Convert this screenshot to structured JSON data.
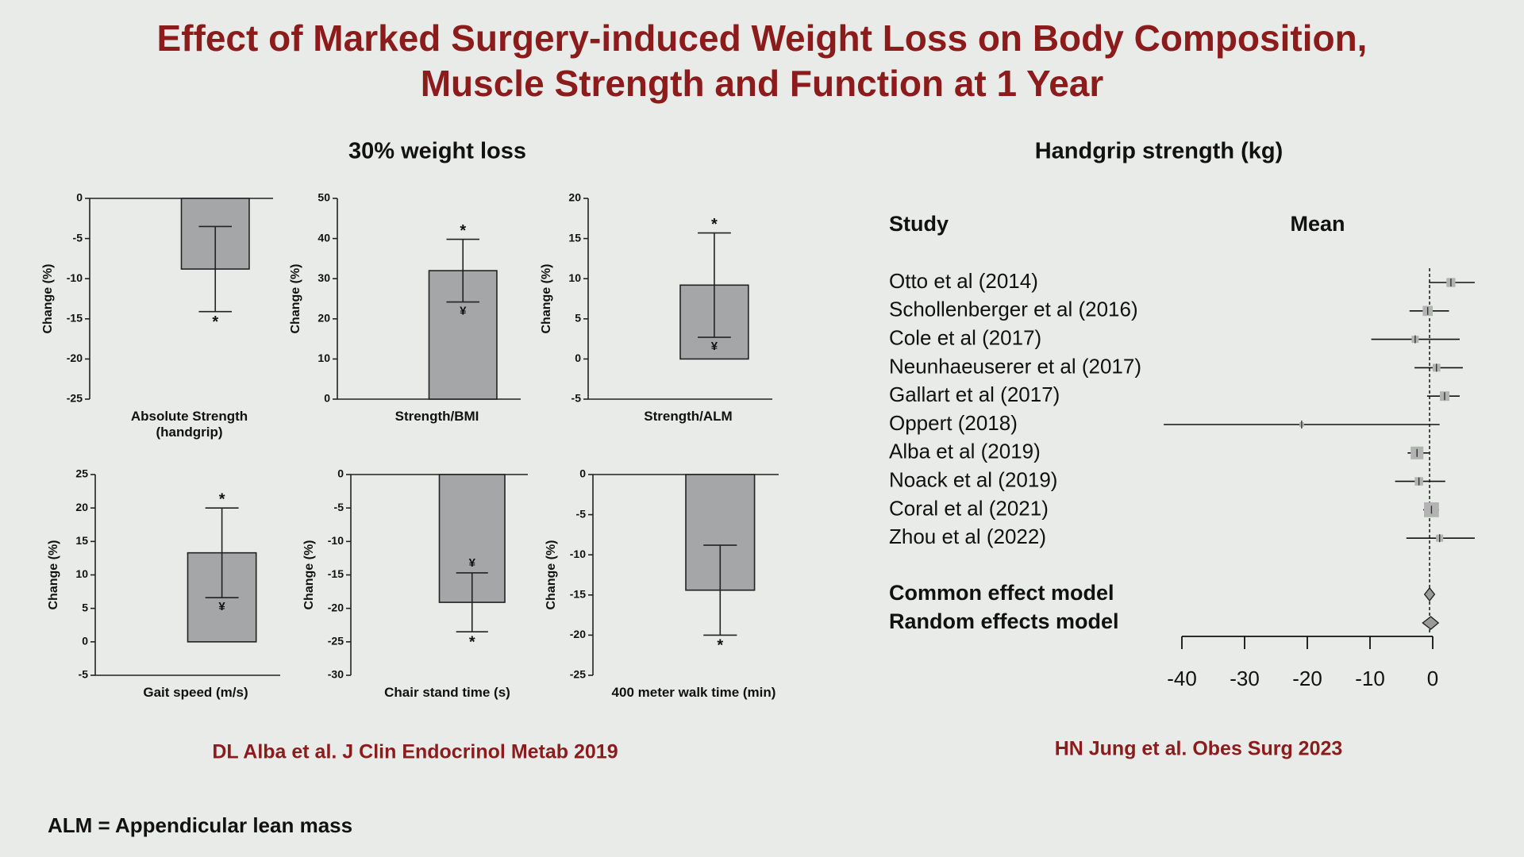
{
  "title": "Effect of Marked Surgery-induced Weight Loss on Body Composition, Muscle Strength and Function at 1 Year",
  "left_heading": "30% weight loss",
  "right_heading": "Handgrip strength (kg)",
  "left_citation": "DL Alba et al. J Clin Endocrinol Metab 2019",
  "right_citation": "HN Jung et al. Obes Surg 2023",
  "footnote": "ALM = Appendicular lean mass",
  "chart_data": [
    {
      "type": "bar",
      "y_label": "Change (%)",
      "categories": [
        "Absolute Strength (handgrip)"
      ],
      "values": [
        -8.8
      ],
      "errors": [
        5.3
      ],
      "outer_mark": "*",
      "ylim": [
        -25,
        0
      ],
      "yticks": [
        0,
        -5,
        -10,
        -15,
        -20,
        -25
      ],
      "color": "#a4a6a7"
    },
    {
      "type": "bar",
      "y_label": "Change (%)",
      "categories": [
        "Strength/BMI"
      ],
      "values": [
        32
      ],
      "errors": [
        7.8
      ],
      "outer_mark": "*",
      "inner_mark": "¥",
      "ylim": [
        0,
        50
      ],
      "yticks": [
        0,
        10,
        20,
        30,
        40,
        50
      ],
      "color": "#a4a6a7"
    },
    {
      "type": "bar",
      "y_label": "Change (%)",
      "categories": [
        "Strength/ALM"
      ],
      "values": [
        9.2
      ],
      "errors": [
        6.5
      ],
      "outer_mark": "*",
      "inner_mark": "¥",
      "ylim": [
        -5,
        20
      ],
      "yticks": [
        -5,
        0,
        5,
        10,
        15,
        20
      ],
      "color": "#a4a6a7"
    },
    {
      "type": "bar",
      "y_label": "Change (%)",
      "categories": [
        "Gait speed  (m/s)"
      ],
      "values": [
        13.3
      ],
      "errors": [
        6.7
      ],
      "outer_mark": "*",
      "inner_mark": "¥",
      "ylim": [
        -5,
        25
      ],
      "yticks": [
        -5,
        0,
        5,
        10,
        15,
        20,
        25
      ],
      "color": "#a4a6a7"
    },
    {
      "type": "bar",
      "y_label": "Change (%)",
      "categories": [
        "Chair stand time (s)"
      ],
      "values": [
        -19.1
      ],
      "errors": [
        4.4
      ],
      "outer_mark": "*",
      "inner_mark": "¥",
      "ylim": [
        -30,
        0
      ],
      "yticks": [
        0,
        -5,
        -10,
        -15,
        -20,
        -25,
        -30
      ],
      "color": "#a4a6a7"
    },
    {
      "type": "bar",
      "y_label": "Change (%)",
      "categories": [
        "400 meter walk time (min)"
      ],
      "values": [
        -14.4
      ],
      "errors": [
        5.6
      ],
      "outer_mark": "*",
      "ylim": [
        -25,
        0
      ],
      "yticks": [
        0,
        -5,
        -10,
        -15,
        -20,
        -25
      ],
      "color": "#a4a6a7"
    },
    {
      "type": "forest",
      "column_headers": [
        "Study",
        "Mean"
      ],
      "studies": [
        "Otto et al (2014)",
        "Schollenberger et al (2016)",
        "Cole et al (2017)",
        "Neunhaeuserer et al (2017)",
        "Gallart et al (2017)",
        "Oppert (2018)",
        "Alba et al (2019)",
        "Noack et al (2019)",
        "Coral et al (2021)",
        "Zhou et al (2022)"
      ],
      "means": [
        2.9,
        -0.8,
        -2.8,
        0.6,
        1.9,
        -20.9,
        -2.5,
        -2.2,
        -0.2,
        1.1
      ],
      "lower": [
        -0.6,
        -3.7,
        -9.8,
        -2.9,
        -0.9,
        -42.9,
        -4.0,
        -6.0,
        -1.5,
        -4.2
      ],
      "upper": [
        6.7,
        2.6,
        4.3,
        4.8,
        4.3,
        1.1,
        -0.6,
        2.0,
        1.0,
        6.7
      ],
      "weights": [
        8,
        10,
        5,
        6,
        9,
        2,
        16,
        7,
        22,
        5
      ],
      "models": [
        "Common effect model",
        "Random effects model"
      ],
      "model_means": [
        -0.5,
        -0.3
      ],
      "model_lower": [
        -1.3,
        -1.6
      ],
      "model_upper": [
        0.3,
        0.9
      ],
      "color": "#b3b3b3",
      "xlim": [
        -40,
        0
      ],
      "xticks": [
        -40,
        -30,
        -20,
        -10,
        0
      ]
    }
  ]
}
